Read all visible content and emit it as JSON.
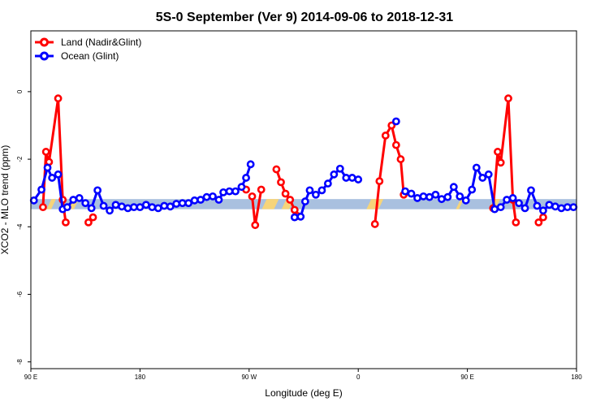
{
  "chart_data": {
    "type": "line",
    "title": "5S-0 September (Ver 9)   2014-09-06 to 2018-12-31",
    "xlabel": "Longitude (deg E)",
    "ylabel": "XCO2 - MLO trend (ppm)",
    "xlim": [
      90,
      450
    ],
    "ylim": [
      -8.2,
      1.8
    ],
    "x_ticks": [
      {
        "value": 90,
        "label": "90 E"
      },
      {
        "value": 162,
        "label": "180"
      },
      {
        "value": 234,
        "label": "90 W"
      },
      {
        "value": 306,
        "label": "0"
      },
      {
        "value": 378,
        "label": "90 E"
      },
      {
        "value": 450,
        "label": "180"
      }
    ],
    "y_ticks": [
      {
        "value": 0,
        "label": "0"
      },
      {
        "value": -2,
        "label": "-2"
      },
      {
        "value": -4,
        "label": "-4"
      },
      {
        "value": -6,
        "label": "-6"
      },
      {
        "value": -8,
        "label": "-8"
      }
    ],
    "legend_position": "top-left",
    "band": {
      "y_range": [
        -3.48,
        -3.18
      ],
      "base_color": "#a9c0df",
      "land_color": "#f6d47a",
      "land_segments": [
        [
          102,
          105
        ],
        [
          116,
          120
        ],
        [
          244,
          252
        ],
        [
          257,
          262
        ],
        [
          313,
          321
        ],
        [
          372,
          374
        ],
        [
          394,
          398
        ]
      ]
    },
    "series": [
      {
        "name": "Land (Nadir&Glint)",
        "color": "#ff0000",
        "segments": [
          [
            [
              98,
              -3.42
            ],
            [
              100,
              -1.78
            ],
            [
              102,
              -2.08
            ],
            [
              108,
              -0.2
            ],
            [
              111,
              -3.2
            ],
            [
              113,
              -3.87
            ]
          ],
          [
            [
              128,
              -3.87
            ],
            [
              131,
              -3.72
            ]
          ],
          [
            [
              232,
              -2.9
            ]
          ],
          [
            [
              236,
              -3.1
            ],
            [
              238,
              -3.95
            ],
            [
              242,
              -2.9
            ]
          ],
          [
            [
              252,
              -2.3
            ],
            [
              255,
              -2.68
            ],
            [
              258,
              -3.02
            ],
            [
              261,
              -3.2
            ],
            [
              264,
              -3.5
            ],
            [
              266,
              -3.68
            ]
          ],
          [
            [
              317,
              -3.92
            ],
            [
              320,
              -2.65
            ],
            [
              324,
              -1.3
            ],
            [
              328,
              -1.0
            ],
            [
              331,
              -1.58
            ],
            [
              334,
              -2.0
            ],
            [
              336,
              -3.05
            ]
          ],
          [
            [
              395,
              -3.45
            ],
            [
              398,
              -1.78
            ],
            [
              400,
              -2.1
            ],
            [
              405,
              -0.2
            ],
            [
              408,
              -3.2
            ],
            [
              410,
              -3.87
            ]
          ],
          [
            [
              425,
              -3.87
            ],
            [
              428,
              -3.72
            ]
          ]
        ]
      },
      {
        "name": "Ocean (Glint)",
        "color": "#0000ff",
        "segments": [
          [
            [
              92,
              -3.22
            ],
            [
              97,
              -2.9
            ],
            [
              101,
              -2.25
            ],
            [
              104,
              -2.55
            ],
            [
              108,
              -2.45
            ],
            [
              111,
              -3.48
            ],
            [
              114,
              -3.42
            ],
            [
              118,
              -3.2
            ],
            [
              122,
              -3.15
            ],
            [
              126,
              -3.3
            ],
            [
              130,
              -3.45
            ],
            [
              134,
              -2.92
            ],
            [
              138,
              -3.38
            ],
            [
              142,
              -3.52
            ],
            [
              146,
              -3.35
            ],
            [
              150,
              -3.4
            ],
            [
              154,
              -3.45
            ],
            [
              158,
              -3.42
            ],
            [
              162,
              -3.42
            ],
            [
              166,
              -3.35
            ],
            [
              170,
              -3.42
            ],
            [
              174,
              -3.45
            ],
            [
              178,
              -3.38
            ],
            [
              182,
              -3.4
            ],
            [
              186,
              -3.32
            ],
            [
              190,
              -3.3
            ],
            [
              194,
              -3.3
            ],
            [
              198,
              -3.22
            ],
            [
              202,
              -3.2
            ],
            [
              206,
              -3.12
            ],
            [
              210,
              -3.1
            ],
            [
              214,
              -3.2
            ],
            [
              217,
              -2.98
            ],
            [
              221,
              -2.95
            ],
            [
              225,
              -2.95
            ],
            [
              229,
              -2.82
            ],
            [
              232,
              -2.55
            ],
            [
              235,
              -2.15
            ]
          ],
          [
            [
              264,
              -3.72
            ],
            [
              268,
              -3.7
            ],
            [
              271,
              -3.25
            ],
            [
              274,
              -2.92
            ],
            [
              278,
              -3.05
            ],
            [
              282,
              -2.92
            ],
            [
              286,
              -2.72
            ],
            [
              290,
              -2.45
            ],
            [
              294,
              -2.28
            ],
            [
              298,
              -2.55
            ],
            [
              302,
              -2.55
            ],
            [
              306,
              -2.6
            ]
          ],
          [
            [
              331,
              -0.88
            ]
          ],
          [
            [
              337,
              -2.95
            ],
            [
              341,
              -3.02
            ],
            [
              345,
              -3.15
            ],
            [
              349,
              -3.1
            ],
            [
              353,
              -3.12
            ],
            [
              357,
              -3.05
            ],
            [
              361,
              -3.18
            ],
            [
              365,
              -3.12
            ],
            [
              369,
              -2.82
            ],
            [
              373,
              -3.1
            ],
            [
              377,
              -3.22
            ],
            [
              381,
              -2.9
            ],
            [
              384,
              -2.25
            ],
            [
              388,
              -2.55
            ],
            [
              392,
              -2.45
            ],
            [
              396,
              -3.48
            ],
            [
              400,
              -3.42
            ],
            [
              404,
              -3.2
            ],
            [
              408,
              -3.15
            ],
            [
              412,
              -3.3
            ],
            [
              416,
              -3.45
            ],
            [
              420,
              -2.92
            ],
            [
              424,
              -3.38
            ],
            [
              428,
              -3.52
            ],
            [
              432,
              -3.35
            ],
            [
              436,
              -3.4
            ],
            [
              440,
              -3.45
            ],
            [
              444,
              -3.42
            ],
            [
              448,
              -3.42
            ]
          ]
        ]
      }
    ]
  }
}
